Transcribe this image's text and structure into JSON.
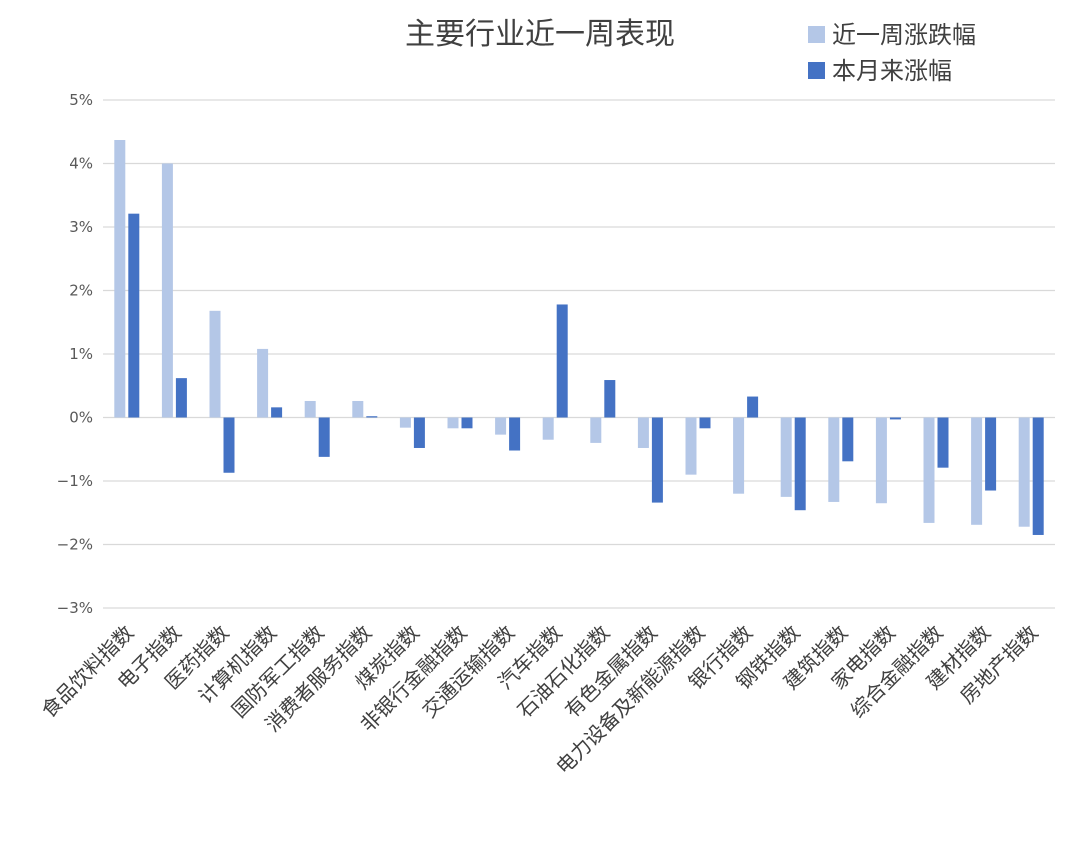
{
  "chart_data": {
    "type": "bar",
    "title": "主要行业近一周表现",
    "xlabel": "",
    "ylabel": "",
    "ylim": [
      -3,
      5
    ],
    "yticks": [
      5,
      4,
      3,
      2,
      1,
      0,
      -1,
      -2,
      -3
    ],
    "ytick_labels": [
      "5%",
      "4%",
      "3%",
      "2%",
      "1%",
      "0%",
      "−1%",
      "−2%",
      "−3%"
    ],
    "grid": true,
    "legend_position": "top-right",
    "categories": [
      "食品饮料指数",
      "电子指数",
      "医药指数",
      "计算机指数",
      "国防军工指数",
      "消费者服务指数",
      "煤炭指数",
      "非银行金融指数",
      "交通运输指数",
      "汽车指数",
      "石油石化指数",
      "有色金属指数",
      "电力设备及新能源指数",
      "银行指数",
      "钢铁指数",
      "建筑指数",
      "家电指数",
      "综合金融指数",
      "建材指数",
      "房地产指数"
    ],
    "series": [
      {
        "name": "近一周涨跌幅",
        "color": "#b4c7e7",
        "values": [
          4.37,
          4.0,
          1.68,
          1.08,
          0.26,
          0.26,
          -0.16,
          -0.17,
          -0.27,
          -0.35,
          -0.4,
          -0.48,
          -0.9,
          -1.2,
          -1.25,
          -1.33,
          -1.35,
          -1.66,
          -1.69,
          -1.72
        ]
      },
      {
        "name": "本月来涨幅",
        "color": "#4472c4",
        "values": [
          3.21,
          0.62,
          -0.87,
          0.16,
          -0.62,
          0.02,
          -0.48,
          -0.17,
          -0.52,
          1.78,
          0.59,
          -1.34,
          -0.17,
          0.33,
          -1.46,
          -0.69,
          -0.03,
          -0.79,
          -1.15,
          -1.85
        ]
      }
    ]
  }
}
